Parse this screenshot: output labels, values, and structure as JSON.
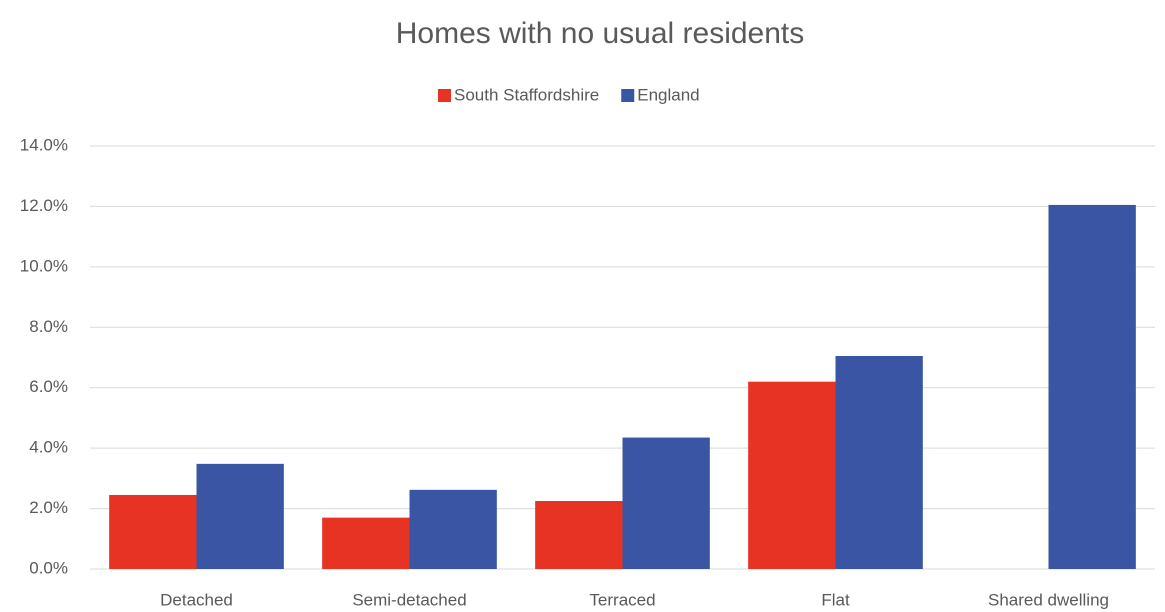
{
  "chart_data": {
    "type": "bar",
    "title": "Homes with no usual residents",
    "categories": [
      "Detached",
      "Semi-detached",
      "Terraced",
      "Flat",
      "Shared dwelling"
    ],
    "series": [
      {
        "name": "South Staffordshire",
        "color": "#e63323",
        "values": [
          2.45,
          1.7,
          2.25,
          6.2,
          0
        ]
      },
      {
        "name": "England",
        "color": "#3a55a3",
        "values": [
          3.48,
          2.62,
          4.35,
          7.05,
          12.05
        ]
      }
    ],
    "ylim": [
      0,
      14
    ],
    "yticks": [
      {
        "value": 0,
        "label": "0.0%"
      },
      {
        "value": 2,
        "label": "2.0%"
      },
      {
        "value": 4,
        "label": "4.0%"
      },
      {
        "value": 6,
        "label": "6.0%"
      },
      {
        "value": 8,
        "label": "8.0%"
      },
      {
        "value": 10,
        "label": "10.0%"
      },
      {
        "value": 12,
        "label": "12.0%"
      },
      {
        "value": 14,
        "label": "14.0%"
      }
    ],
    "grid": true,
    "legend": "top"
  }
}
